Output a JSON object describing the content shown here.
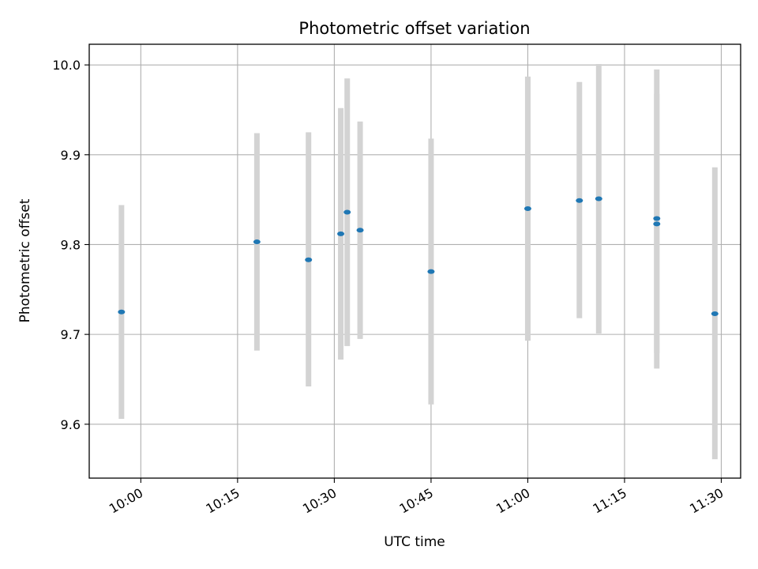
{
  "chart_data": {
    "type": "scatter",
    "title": "Photometric offset variation",
    "xlabel": "UTC time",
    "ylabel": "Photometric offset",
    "x_unit": "HH:MM",
    "xlim": [
      "09:52",
      "11:33"
    ],
    "ylim": [
      9.54,
      10.023
    ],
    "grid": true,
    "x_ticks": [
      "10:00",
      "10:15",
      "10:30",
      "10:45",
      "11:00",
      "11:15",
      "11:30"
    ],
    "y_ticks": [
      9.6,
      9.7,
      9.8,
      9.9,
      10.0
    ],
    "y_tick_labels": [
      "9.6",
      "9.7",
      "9.8",
      "9.9",
      "10.0"
    ],
    "colors": {
      "point": "#1f77b4",
      "errorbar": "#d3d3d3",
      "grid": "#b0b0b0"
    },
    "points": [
      {
        "x": "09:57",
        "y": 9.725,
        "ylow": 9.606,
        "yhigh": 9.844
      },
      {
        "x": "10:18",
        "y": 9.803,
        "ylow": 9.682,
        "yhigh": 9.924
      },
      {
        "x": "10:26",
        "y": 9.783,
        "ylow": 9.642,
        "yhigh": 9.925
      },
      {
        "x": "10:31",
        "y": 9.812,
        "ylow": 9.672,
        "yhigh": 9.952
      },
      {
        "x": "10:32",
        "y": 9.836,
        "ylow": 9.687,
        "yhigh": 9.985
      },
      {
        "x": "10:34",
        "y": 9.816,
        "ylow": 9.695,
        "yhigh": 9.937
      },
      {
        "x": "10:45",
        "y": 9.77,
        "ylow": 9.622,
        "yhigh": 9.918
      },
      {
        "x": "11:00",
        "y": 9.84,
        "ylow": 9.693,
        "yhigh": 9.987
      },
      {
        "x": "11:08",
        "y": 9.849,
        "ylow": 9.718,
        "yhigh": 9.981
      },
      {
        "x": "11:11",
        "y": 9.851,
        "ylow": 9.701,
        "yhigh": 10.001
      },
      {
        "x": "11:20",
        "y": 9.823,
        "ylow": 9.679,
        "yhigh": 9.968
      },
      {
        "x": "11:20",
        "y": 9.829,
        "ylow": 9.662,
        "yhigh": 9.995
      },
      {
        "x": "11:29",
        "y": 9.723,
        "ylow": 9.561,
        "yhigh": 9.886
      }
    ]
  }
}
